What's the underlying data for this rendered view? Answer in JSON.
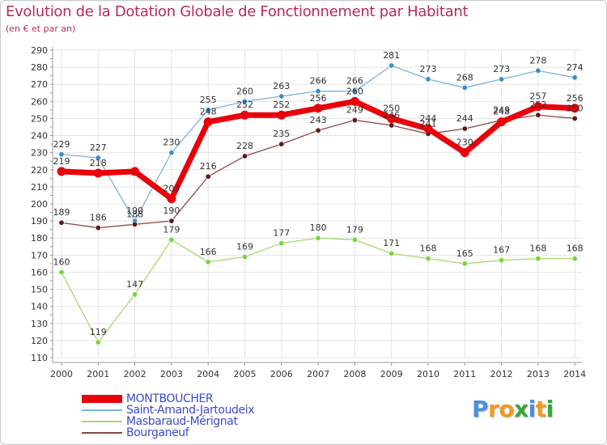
{
  "title": "Evolution de la Dotation Globale de Fonctionnement par Habitant",
  "subtitle": "(en € et par an)",
  "brand": {
    "letters": [
      "P",
      "r",
      "o",
      "x",
      "i",
      "t",
      "i"
    ],
    "colors": [
      "#4a90d9",
      "#f29a1f",
      "#f29a1f",
      "#3aa43a",
      "#4a90d9",
      "#f29a1f",
      "#3aa43a"
    ]
  },
  "chart_data": {
    "type": "line",
    "x": [
      "2000",
      "2001",
      "2002",
      "2003",
      "2004",
      "2005",
      "2006",
      "2007",
      "2008",
      "2009",
      "2010",
      "2011",
      "2012",
      "2013",
      "2014"
    ],
    "ylim": [
      110,
      290
    ],
    "yticks": [
      110,
      120,
      130,
      140,
      150,
      160,
      170,
      180,
      190,
      200,
      210,
      220,
      230,
      240,
      250,
      260,
      270,
      280,
      290
    ],
    "grid": true,
    "legend_position": "bottom-left",
    "series": [
      {
        "name": "MONTBOUCHER",
        "color": "#e8000b",
        "marker": "#e8000b",
        "width": 7,
        "labels": false,
        "values": [
          219,
          218,
          219,
          203,
          248,
          252,
          252,
          256,
          260,
          250,
          244,
          230,
          248,
          257,
          256
        ]
      },
      {
        "name": "Saint-Amand-Jartoudeix",
        "color": "#7fb2d8",
        "marker": "#3c8ccc",
        "width": 1.3,
        "labels": true,
        "values": [
          229,
          227,
          190,
          230,
          255,
          260,
          263,
          266,
          266,
          281,
          273,
          268,
          273,
          278,
          274
        ]
      },
      {
        "name": "Masbaraud-Mérignat",
        "color": "#a6d86f",
        "marker": "#7dd33b",
        "width": 1.3,
        "labels": true,
        "values": [
          160,
          119,
          147,
          179,
          166,
          169,
          177,
          180,
          179,
          171,
          168,
          165,
          167,
          168,
          168
        ]
      },
      {
        "name": "Bourganeuf",
        "color": "#8b4848",
        "marker": "#5c1a1a",
        "width": 1.3,
        "labels": true,
        "values": [
          189,
          186,
          188,
          190,
          216,
          228,
          235,
          243,
          249,
          246,
          241,
          244,
          249,
          252,
          250
        ]
      }
    ],
    "data_labels": {
      "MONTBOUCHER": [
        "219",
        "218",
        "",
        "203",
        "248",
        "252",
        "252",
        "256",
        "260",
        "250",
        "244",
        "230",
        "248",
        "257",
        "256"
      ]
    }
  }
}
